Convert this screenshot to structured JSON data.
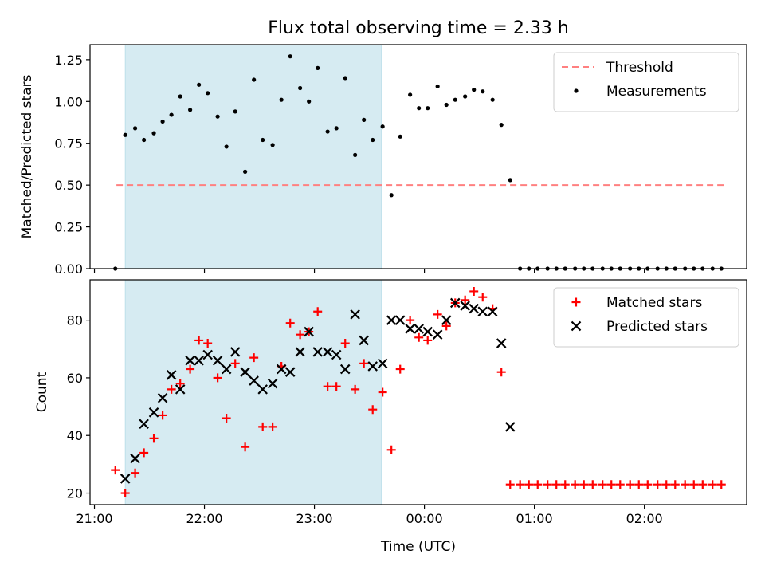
{
  "figure_title": "Flux total observing time = 2.33 h",
  "chart_data": [
    {
      "type": "scatter",
      "ylabel": "Matched/Predicted stars",
      "xlabel": "",
      "xlim": [
        -0.04,
        5.93
      ],
      "ylim": [
        0.0,
        1.34
      ],
      "x_ticks": [
        0,
        1,
        2,
        3,
        4,
        5
      ],
      "x_tick_labels": [
        "",
        "",
        "",
        "",
        "",
        ""
      ],
      "y_ticks": [
        0.0,
        0.25,
        0.5,
        0.75,
        1.0,
        1.25
      ],
      "y_tick_labels": [
        "0.00",
        "0.25",
        "0.50",
        "0.75",
        "1.00",
        "1.25"
      ],
      "shaded_region": {
        "x": [
          0.28,
          2.61
        ],
        "color": "#add8e6"
      },
      "legend_position": "upper right",
      "series": [
        {
          "name": "Threshold",
          "kind": "line",
          "style": "dashed",
          "color": "#ff8080",
          "x": [
            0.2,
            5.72
          ],
          "y": [
            0.5,
            0.5
          ]
        },
        {
          "name": "Measurements",
          "kind": "dots",
          "color": "#000000",
          "x": [
            0.19,
            0.28,
            0.37,
            0.45,
            0.54,
            0.62,
            0.7,
            0.78,
            0.87,
            0.95,
            1.03,
            1.12,
            1.2,
            1.28,
            1.37,
            1.45,
            1.53,
            1.62,
            1.7,
            1.78,
            1.87,
            1.95,
            2.03,
            2.12,
            2.2,
            2.28,
            2.37,
            2.45,
            2.53,
            2.62,
            2.7,
            2.78,
            2.87,
            2.95,
            3.03,
            3.12,
            3.2,
            3.28,
            3.37,
            3.45,
            3.53,
            3.62,
            3.7,
            3.78,
            3.87,
            3.95,
            4.03,
            4.12,
            4.2,
            4.28,
            4.37,
            4.45,
            4.53,
            4.62,
            4.7,
            4.78,
            4.87,
            4.95,
            5.03,
            5.12,
            5.2,
            5.28,
            5.37,
            5.45,
            5.53,
            5.62,
            5.7
          ],
          "y": [
            0.0,
            0.8,
            0.84,
            0.77,
            0.81,
            0.88,
            0.92,
            1.03,
            0.95,
            1.1,
            1.05,
            0.91,
            0.73,
            0.94,
            0.58,
            1.13,
            0.77,
            0.74,
            1.01,
            1.27,
            1.08,
            1.0,
            1.2,
            0.82,
            0.84,
            1.14,
            0.68,
            0.89,
            0.77,
            0.85,
            0.44,
            0.79,
            1.04,
            0.96,
            0.96,
            1.09,
            0.98,
            1.01,
            1.03,
            1.07,
            1.06,
            1.01,
            0.86,
            0.53,
            0.0,
            0.0,
            0.0,
            0.0,
            0.0,
            0.0,
            0.0,
            0.0,
            0.0,
            0.0,
            0.0,
            0.0,
            0.0,
            0.0,
            0.0,
            0.0,
            0.0,
            0.0,
            0.0,
            0.0,
            0.0,
            0.0,
            0.0
          ]
        }
      ]
    },
    {
      "type": "scatter",
      "ylabel": "Count",
      "xlabel": "Time (UTC)",
      "xlim": [
        -0.04,
        5.93
      ],
      "ylim": [
        16.0,
        94.0
      ],
      "x_ticks": [
        0,
        1,
        2,
        3,
        4,
        5
      ],
      "x_tick_labels": [
        "21:00",
        "22:00",
        "23:00",
        "00:00",
        "01:00",
        "02:00"
      ],
      "y_ticks": [
        20,
        40,
        60,
        80
      ],
      "y_tick_labels": [
        "20",
        "40",
        "60",
        "80"
      ],
      "shaded_region": {
        "x": [
          0.28,
          2.61
        ],
        "color": "#add8e6"
      },
      "legend_position": "upper right",
      "series": [
        {
          "name": "Matched stars",
          "kind": "plus",
          "color": "#ff0000",
          "x": [
            0.19,
            0.28,
            0.37,
            0.45,
            0.54,
            0.62,
            0.7,
            0.78,
            0.87,
            0.95,
            1.03,
            1.12,
            1.2,
            1.28,
            1.37,
            1.45,
            1.53,
            1.62,
            1.7,
            1.78,
            1.87,
            1.95,
            2.03,
            2.12,
            2.2,
            2.28,
            2.37,
            2.45,
            2.53,
            2.62,
            2.7,
            2.78,
            2.87,
            2.95,
            3.03,
            3.12,
            3.2,
            3.28,
            3.37,
            3.45,
            3.53,
            3.62,
            3.7,
            3.78,
            3.87,
            3.95,
            4.03,
            4.12,
            4.2,
            4.28,
            4.37,
            4.45,
            4.53,
            4.62,
            4.7,
            4.78,
            4.87,
            4.95,
            5.03,
            5.12,
            5.2,
            5.28,
            5.37,
            5.45,
            5.53,
            5.62,
            5.7
          ],
          "y": [
            28,
            20,
            27,
            34,
            39,
            47,
            56,
            58,
            63,
            73,
            72,
            60,
            46,
            65,
            36,
            67,
            43,
            43,
            64,
            79,
            75,
            76,
            83,
            57,
            57,
            72,
            56,
            65,
            49,
            55,
            35,
            63,
            80,
            74,
            73,
            82,
            78,
            86,
            87,
            90,
            88,
            84,
            62,
            23,
            23,
            23,
            23,
            23,
            23,
            23,
            23,
            23,
            23,
            23,
            23,
            23,
            23,
            23,
            23,
            23,
            23,
            23,
            23,
            23,
            23,
            23,
            23
          ]
        },
        {
          "name": "Predicted stars",
          "kind": "x",
          "color": "#000000",
          "x": [
            0.28,
            0.37,
            0.45,
            0.54,
            0.62,
            0.7,
            0.78,
            0.87,
            0.95,
            1.03,
            1.12,
            1.2,
            1.28,
            1.37,
            1.45,
            1.53,
            1.62,
            1.7,
            1.78,
            1.87,
            1.95,
            2.03,
            2.12,
            2.2,
            2.28,
            2.37,
            2.45,
            2.53,
            2.62,
            2.7,
            2.78,
            2.87,
            2.95,
            3.03,
            3.12,
            3.2,
            3.28,
            3.37,
            3.45,
            3.53,
            3.62,
            3.7,
            3.78
          ],
          "y": [
            25,
            32,
            44,
            48,
            53,
            61,
            56,
            66,
            66,
            68,
            66,
            63,
            69,
            62,
            59,
            56,
            58,
            63,
            62,
            69,
            76,
            69,
            69,
            68,
            63,
            82,
            73,
            64,
            65,
            80,
            80,
            77,
            77,
            76,
            75,
            80,
            86,
            85,
            84,
            83,
            83,
            72,
            43
          ]
        }
      ]
    }
  ]
}
